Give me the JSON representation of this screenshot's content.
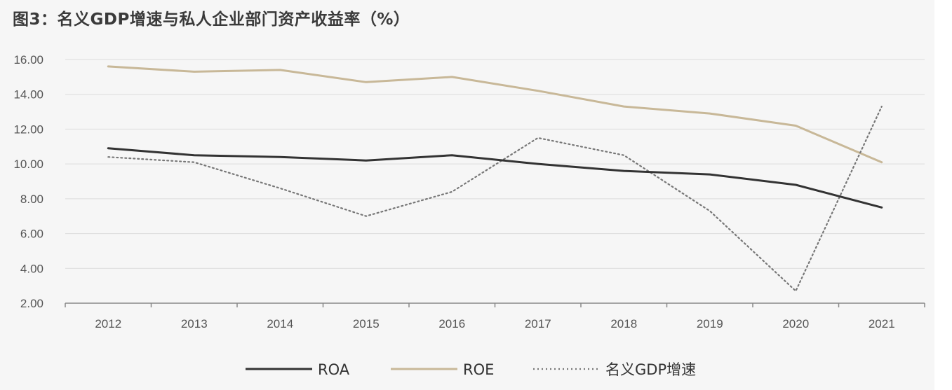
{
  "title": "图3：名义GDP增速与私人企业部门资产收益率（%）",
  "chart_data": {
    "type": "line",
    "title": "图3：名义GDP增速与私人企业部门资产收益率（%）",
    "categories": [
      "2012",
      "2013",
      "2014",
      "2015",
      "2016",
      "2017",
      "2018",
      "2019",
      "2020",
      "2021"
    ],
    "ylim": [
      2,
      16
    ],
    "yticks": [
      "2.00",
      "4.00",
      "6.00",
      "8.00",
      "10.00",
      "12.00",
      "14.00",
      "16.00"
    ],
    "grid": true,
    "legend_position": "bottom",
    "series": [
      {
        "name": "ROA",
        "color": "#333333",
        "style": "solid",
        "values": [
          10.9,
          10.5,
          10.4,
          10.2,
          10.5,
          10.0,
          9.6,
          9.4,
          8.8,
          7.5
        ]
      },
      {
        "name": "ROE",
        "color": "#c8b898",
        "style": "solid",
        "values": [
          15.6,
          15.3,
          15.4,
          14.7,
          15.0,
          14.2,
          13.3,
          12.9,
          12.2,
          10.1
        ]
      },
      {
        "name": "名义GDP增速",
        "color": "#777777",
        "style": "dotted",
        "values": [
          10.4,
          10.1,
          8.6,
          7.0,
          8.4,
          11.5,
          10.5,
          7.3,
          2.7,
          13.3
        ]
      }
    ]
  }
}
